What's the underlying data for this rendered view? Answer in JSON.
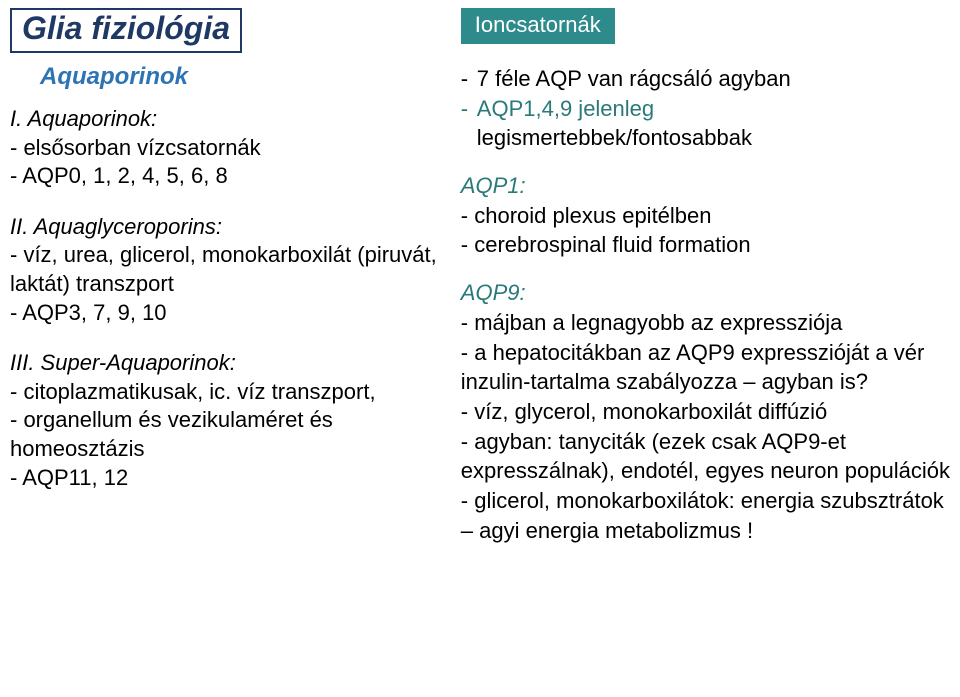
{
  "colors": {
    "darkblue": "#1f3864",
    "medblue": "#2e74b5",
    "teal": "#2a7a7a",
    "tealbg": "#2e8b8b",
    "white": "#ffffff",
    "black": "#000000"
  },
  "left": {
    "title": "Glia fiziológia",
    "subhead": "Aquaporinok",
    "sec1_lead": "I. Aquaporinok:",
    "sec1_l1": "- elsősorban vízcsatornák",
    "sec1_l2": "- AQP0, 1, 2, 4, 5, 6, 8",
    "sec2_lead": "II. Aquaglyceroporins:",
    "sec2_l1": "- víz, urea, glicerol, monokarboxilát (piruvát, laktát) transzport",
    "sec2_l2": "- AQP3, 7, 9, 10",
    "sec3_lead": "III. Super-Aquaporinok:",
    "sec3_l1": "- citoplazmatikusak, ic. víz transzport,",
    "sec3_l2": "- organellum és vezikulaméret és homeosztázis",
    "sec3_l3": "- AQP11, 12"
  },
  "right": {
    "tag": "Ioncsatornák",
    "top_l1": "7 féle AQP van rágcsáló agyban",
    "top_l2a": "AQP1,4,9 jelenleg",
    "top_l2b": "legismertebbek/fontosabbak",
    "aqp1_head": "AQP1:",
    "aqp1_l1": "- choroid plexus epitélben",
    "aqp1_l2": "- cerebrospinal fluid formation",
    "aqp9_head": "AQP9:",
    "aqp9_l1": "-  májban a legnagyobb az expressziója",
    "aqp9_l2": "- a hepatocitákban az AQP9 expresszióját a vér inzulin-tartalma szabályozza – agyban is?",
    "aqp9_l3": "- víz, glycerol, monokarboxilát diffúzió",
    "aqp9_l4": "- agyban: tanyciták (ezek csak AQP9-et expresszálnak), endotél, egyes neuron populációk",
    "aqp9_l5": "- glicerol, monokarboxilátok: energia szubsztrátok – agyi energia metabolizmus !"
  }
}
